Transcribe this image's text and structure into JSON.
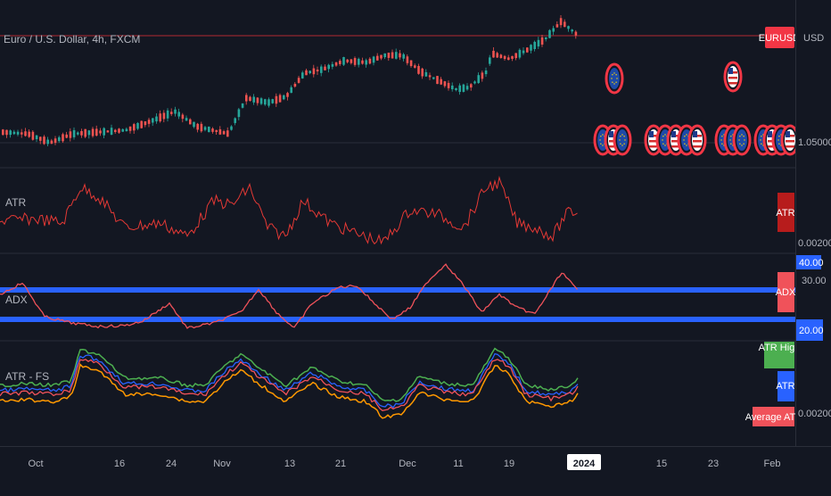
{
  "symbol": {
    "title": "Euro / U.S. Dollar, 4h, FXCM",
    "ticker_badge": "EURUSD",
    "currency": "USD",
    "price_level": "1.05000"
  },
  "panes": {
    "atr": {
      "title": "ATR",
      "badge": "ATR",
      "axis_value": "0.00200"
    },
    "adx": {
      "title": "ADX",
      "badge": "ADX",
      "upper_level": "40.00",
      "mid_value": "30.00",
      "lower_level": "20.00"
    },
    "atr_fs": {
      "title": "ATR - FS",
      "badge_high": "ATR High",
      "badge_atr": "ATR",
      "badge_avg": "Average ATR",
      "axis_value": "0.00200"
    }
  },
  "time_axis": [
    "Oct",
    "16",
    "24",
    "Nov",
    "13",
    "21",
    "Dec",
    "11",
    "19",
    "2024",
    "15",
    "23",
    "Feb"
  ],
  "colors": {
    "background": "#131722",
    "bull": "#26a69a",
    "bear": "#ef5350",
    "atr_line": "#e53935",
    "adx_line": "#f0525a",
    "level_line": "#2962ff",
    "fs_green": "#4caf50",
    "fs_blue": "#2962ff",
    "fs_red": "#f0525a",
    "fs_orange": "#ff9800"
  },
  "icons": [
    "eu-flag-icon",
    "us-flag-icon"
  ]
}
